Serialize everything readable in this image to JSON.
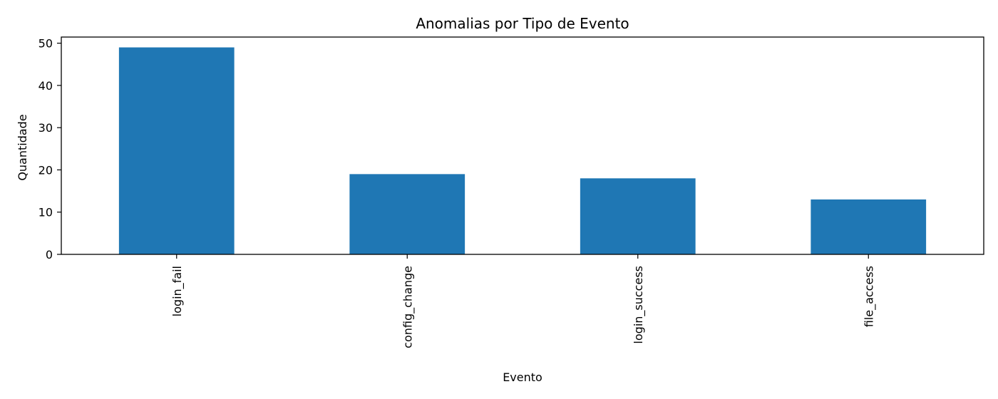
{
  "chart_data": {
    "type": "bar",
    "title": "Anomalias por Tipo de Evento",
    "xlabel": "Evento",
    "ylabel": "Quantidade",
    "categories": [
      "login_fail",
      "config_change",
      "login_success",
      "file_access"
    ],
    "values": [
      49,
      19,
      18,
      13
    ],
    "ylim": [
      0,
      51.45
    ],
    "yticks": [
      0,
      10,
      20,
      30,
      40,
      50
    ],
    "bar_color": "#1f77b4",
    "grid": false,
    "legend": "none",
    "xtick_rotation": "vertical"
  }
}
